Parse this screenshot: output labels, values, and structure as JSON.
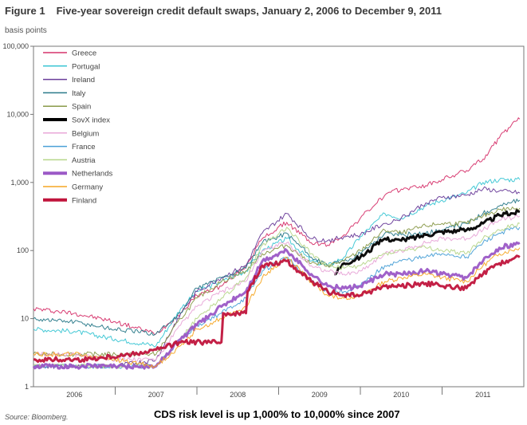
{
  "figure": {
    "number": "Figure 1",
    "title": "Five-year sovereign credit default swaps, January 2, 2006 to December 9, 2011",
    "unit_label": "basis points",
    "source": "Source: Bloomberg.",
    "note": "CDS risk level is up 1,000% to 10,000% since 2007"
  },
  "chart_data": {
    "type": "line",
    "y_scale": "log",
    "ylim": [
      1,
      100000
    ],
    "y_ticks": [
      {
        "value": 1,
        "label": "1"
      },
      {
        "value": 10,
        "label": "10"
      },
      {
        "value": 100,
        "label": "100"
      },
      {
        "value": 1000,
        "label": "1,000"
      },
      {
        "value": 10000,
        "label": "10,000"
      },
      {
        "value": 100000,
        "label": "100,000"
      }
    ],
    "xlim": [
      2006.0,
      2012.0
    ],
    "x_ticks": [
      {
        "value": 2006.5,
        "label": "2006"
      },
      {
        "value": 2007.5,
        "label": "2007"
      },
      {
        "value": 2008.5,
        "label": "2008"
      },
      {
        "value": 2009.5,
        "label": "2009"
      },
      {
        "value": 2010.5,
        "label": "2010"
      },
      {
        "value": 2011.5,
        "label": "2011"
      }
    ],
    "x_dividers": [
      2007,
      2008,
      2009,
      2010,
      2011
    ],
    "legend_position": "top-left",
    "series": [
      {
        "name": "Greece",
        "color": "#d6336c",
        "bold": false,
        "points": [
          [
            2006.0,
            14
          ],
          [
            2006.5,
            12
          ],
          [
            2007.0,
            9
          ],
          [
            2007.5,
            6
          ],
          [
            2007.8,
            12
          ],
          [
            2008.0,
            22
          ],
          [
            2008.3,
            30
          ],
          [
            2008.6,
            60
          ],
          [
            2008.8,
            150
          ],
          [
            2009.1,
            260
          ],
          [
            2009.4,
            130
          ],
          [
            2009.6,
            120
          ],
          [
            2009.8,
            170
          ],
          [
            2010.0,
            300
          ],
          [
            2010.3,
            650
          ],
          [
            2010.5,
            800
          ],
          [
            2010.8,
            900
          ],
          [
            2011.0,
            1100
          ],
          [
            2011.3,
            1500
          ],
          [
            2011.5,
            2200
          ],
          [
            2011.7,
            4500
          ],
          [
            2011.85,
            7000
          ],
          [
            2011.95,
            8500
          ]
        ]
      },
      {
        "name": "Portugal",
        "color": "#3cc6d4",
        "bold": false,
        "points": [
          [
            2006.0,
            7
          ],
          [
            2006.5,
            6.5
          ],
          [
            2007.0,
            5
          ],
          [
            2007.5,
            4
          ],
          [
            2007.8,
            14
          ],
          [
            2008.0,
            25
          ],
          [
            2008.3,
            35
          ],
          [
            2008.6,
            50
          ],
          [
            2008.8,
            100
          ],
          [
            2009.1,
            150
          ],
          [
            2009.4,
            70
          ],
          [
            2009.6,
            60
          ],
          [
            2009.8,
            80
          ],
          [
            2010.0,
            160
          ],
          [
            2010.3,
            350
          ],
          [
            2010.5,
            300
          ],
          [
            2010.8,
            450
          ],
          [
            2011.0,
            550
          ],
          [
            2011.3,
            700
          ],
          [
            2011.5,
            1000
          ],
          [
            2011.7,
            1100
          ],
          [
            2011.95,
            1100
          ]
        ]
      },
      {
        "name": "Ireland",
        "color": "#6a3d9a",
        "bold": false,
        "points": [
          [
            2006.0,
            2
          ],
          [
            2006.5,
            2
          ],
          [
            2007.0,
            2
          ],
          [
            2007.5,
            2.5
          ],
          [
            2007.8,
            12
          ],
          [
            2008.0,
            25
          ],
          [
            2008.3,
            40
          ],
          [
            2008.6,
            60
          ],
          [
            2008.8,
            180
          ],
          [
            2009.1,
            350
          ],
          [
            2009.4,
            150
          ],
          [
            2009.6,
            140
          ],
          [
            2009.8,
            160
          ],
          [
            2010.0,
            170
          ],
          [
            2010.3,
            250
          ],
          [
            2010.5,
            300
          ],
          [
            2010.8,
            500
          ],
          [
            2011.0,
            600
          ],
          [
            2011.3,
            650
          ],
          [
            2011.5,
            800
          ],
          [
            2011.7,
            750
          ],
          [
            2011.95,
            700
          ]
        ]
      },
      {
        "name": "Italy",
        "color": "#2a7a8a",
        "bold": false,
        "points": [
          [
            2006.0,
            10
          ],
          [
            2006.5,
            9
          ],
          [
            2007.0,
            7
          ],
          [
            2007.5,
            6
          ],
          [
            2007.8,
            12
          ],
          [
            2008.0,
            28
          ],
          [
            2008.3,
            40
          ],
          [
            2008.6,
            55
          ],
          [
            2008.8,
            130
          ],
          [
            2009.1,
            180
          ],
          [
            2009.4,
            80
          ],
          [
            2009.6,
            60
          ],
          [
            2009.8,
            70
          ],
          [
            2010.0,
            90
          ],
          [
            2010.3,
            180
          ],
          [
            2010.5,
            170
          ],
          [
            2010.8,
            180
          ],
          [
            2011.0,
            200
          ],
          [
            2011.3,
            250
          ],
          [
            2011.5,
            350
          ],
          [
            2011.7,
            450
          ],
          [
            2011.95,
            550
          ]
        ]
      },
      {
        "name": "Spain",
        "color": "#8a9a4a",
        "bold": false,
        "points": [
          [
            2006.0,
            3
          ],
          [
            2006.5,
            3
          ],
          [
            2007.0,
            3
          ],
          [
            2007.5,
            3
          ],
          [
            2007.8,
            10
          ],
          [
            2008.0,
            20
          ],
          [
            2008.3,
            35
          ],
          [
            2008.6,
            50
          ],
          [
            2008.8,
            90
          ],
          [
            2009.1,
            120
          ],
          [
            2009.4,
            65
          ],
          [
            2009.6,
            60
          ],
          [
            2009.8,
            70
          ],
          [
            2010.0,
            100
          ],
          [
            2010.3,
            200
          ],
          [
            2010.5,
            180
          ],
          [
            2010.8,
            230
          ],
          [
            2011.0,
            250
          ],
          [
            2011.3,
            250
          ],
          [
            2011.5,
            320
          ],
          [
            2011.7,
            400
          ],
          [
            2011.95,
            420
          ]
        ]
      },
      {
        "name": "SovX index",
        "color": "#000000",
        "bold": true,
        "points": [
          [
            2009.68,
            45
          ],
          [
            2009.8,
            65
          ],
          [
            2010.0,
            80
          ],
          [
            2010.3,
            150
          ],
          [
            2010.5,
            140
          ],
          [
            2010.8,
            170
          ],
          [
            2011.0,
            190
          ],
          [
            2011.3,
            200
          ],
          [
            2011.5,
            250
          ],
          [
            2011.7,
            330
          ],
          [
            2011.95,
            370
          ]
        ]
      },
      {
        "name": "Belgium",
        "color": "#e8a7d8",
        "bold": false,
        "points": [
          [
            2006.0,
            3
          ],
          [
            2006.5,
            3
          ],
          [
            2007.0,
            2.5
          ],
          [
            2007.5,
            2.5
          ],
          [
            2007.8,
            8
          ],
          [
            2008.0,
            15
          ],
          [
            2008.3,
            25
          ],
          [
            2008.6,
            35
          ],
          [
            2008.8,
            100
          ],
          [
            2009.1,
            130
          ],
          [
            2009.4,
            60
          ],
          [
            2009.6,
            50
          ],
          [
            2009.8,
            45
          ],
          [
            2010.0,
            50
          ],
          [
            2010.3,
            90
          ],
          [
            2010.5,
            100
          ],
          [
            2010.8,
            130
          ],
          [
            2011.0,
            150
          ],
          [
            2011.3,
            150
          ],
          [
            2011.5,
            200
          ],
          [
            2011.7,
            280
          ],
          [
            2011.95,
            320
          ]
        ]
      },
      {
        "name": "France",
        "color": "#4aa0d6",
        "bold": false,
        "points": [
          [
            2006.0,
            2
          ],
          [
            2006.5,
            2
          ],
          [
            2007.0,
            2
          ],
          [
            2007.5,
            2
          ],
          [
            2007.8,
            5
          ],
          [
            2008.0,
            8
          ],
          [
            2008.3,
            12
          ],
          [
            2008.6,
            20
          ],
          [
            2008.8,
            50
          ],
          [
            2009.1,
            80
          ],
          [
            2009.4,
            35
          ],
          [
            2009.6,
            25
          ],
          [
            2009.8,
            25
          ],
          [
            2010.0,
            30
          ],
          [
            2010.3,
            60
          ],
          [
            2010.5,
            70
          ],
          [
            2010.8,
            80
          ],
          [
            2011.0,
            90
          ],
          [
            2011.3,
            80
          ],
          [
            2011.5,
            130
          ],
          [
            2011.7,
            180
          ],
          [
            2011.95,
            220
          ]
        ]
      },
      {
        "name": "Austria",
        "color": "#b6d68a",
        "bold": false,
        "points": [
          [
            2006.0,
            2
          ],
          [
            2006.5,
            2
          ],
          [
            2007.0,
            2
          ],
          [
            2007.5,
            2
          ],
          [
            2007.8,
            5
          ],
          [
            2008.0,
            10
          ],
          [
            2008.3,
            20
          ],
          [
            2008.6,
            40
          ],
          [
            2008.8,
            120
          ],
          [
            2009.1,
            220
          ],
          [
            2009.4,
            90
          ],
          [
            2009.6,
            60
          ],
          [
            2009.8,
            55
          ],
          [
            2010.0,
            60
          ],
          [
            2010.3,
            90
          ],
          [
            2010.5,
            100
          ],
          [
            2010.8,
            110
          ],
          [
            2011.0,
            100
          ],
          [
            2011.3,
            90
          ],
          [
            2011.5,
            150
          ],
          [
            2011.7,
            200
          ],
          [
            2011.95,
            250
          ]
        ]
      },
      {
        "name": "Netherlands",
        "color": "#9b59c6",
        "bold": true,
        "points": [
          [
            2006.0,
            2
          ],
          [
            2006.5,
            2
          ],
          [
            2007.0,
            2
          ],
          [
            2007.5,
            2
          ],
          [
            2007.8,
            5
          ],
          [
            2008.0,
            8
          ],
          [
            2008.3,
            15
          ],
          [
            2008.6,
            25
          ],
          [
            2008.8,
            70
          ],
          [
            2009.1,
            100
          ],
          [
            2009.4,
            45
          ],
          [
            2009.6,
            30
          ],
          [
            2009.8,
            28
          ],
          [
            2010.0,
            30
          ],
          [
            2010.3,
            45
          ],
          [
            2010.5,
            45
          ],
          [
            2010.8,
            50
          ],
          [
            2011.0,
            45
          ],
          [
            2011.3,
            40
          ],
          [
            2011.5,
            70
          ],
          [
            2011.7,
            110
          ],
          [
            2011.95,
            130
          ]
        ]
      },
      {
        "name": "Germany",
        "color": "#f5a623",
        "bold": false,
        "points": [
          [
            2006.0,
            3
          ],
          [
            2006.5,
            3
          ],
          [
            2007.0,
            2.5
          ],
          [
            2007.5,
            2
          ],
          [
            2007.8,
            4
          ],
          [
            2008.0,
            7
          ],
          [
            2008.3,
            10
          ],
          [
            2008.6,
            15
          ],
          [
            2008.8,
            40
          ],
          [
            2009.1,
            80
          ],
          [
            2009.4,
            35
          ],
          [
            2009.6,
            22
          ],
          [
            2009.8,
            20
          ],
          [
            2010.0,
            22
          ],
          [
            2010.3,
            35
          ],
          [
            2010.5,
            40
          ],
          [
            2010.8,
            45
          ],
          [
            2011.0,
            40
          ],
          [
            2011.3,
            35
          ],
          [
            2011.5,
            60
          ],
          [
            2011.7,
            90
          ],
          [
            2011.95,
            110
          ]
        ]
      },
      {
        "name": "Finland",
        "color": "#c0143c",
        "bold": true,
        "points": [
          [
            2006.0,
            2.5
          ],
          [
            2006.6,
            2.5
          ],
          [
            2007.2,
            3
          ],
          [
            2007.5,
            3.5
          ],
          [
            2007.8,
            4.5
          ],
          [
            2008.3,
            4.5
          ],
          [
            2008.32,
            12
          ],
          [
            2008.6,
            12
          ],
          [
            2008.62,
            25
          ],
          [
            2008.8,
            60
          ],
          [
            2009.1,
            70
          ],
          [
            2009.4,
            35
          ],
          [
            2009.6,
            25
          ],
          [
            2009.8,
            22
          ],
          [
            2010.0,
            22
          ],
          [
            2010.3,
            30
          ],
          [
            2010.5,
            30
          ],
          [
            2010.8,
            33
          ],
          [
            2011.0,
            30
          ],
          [
            2011.3,
            28
          ],
          [
            2011.5,
            45
          ],
          [
            2011.7,
            65
          ],
          [
            2011.95,
            80
          ]
        ]
      }
    ]
  }
}
